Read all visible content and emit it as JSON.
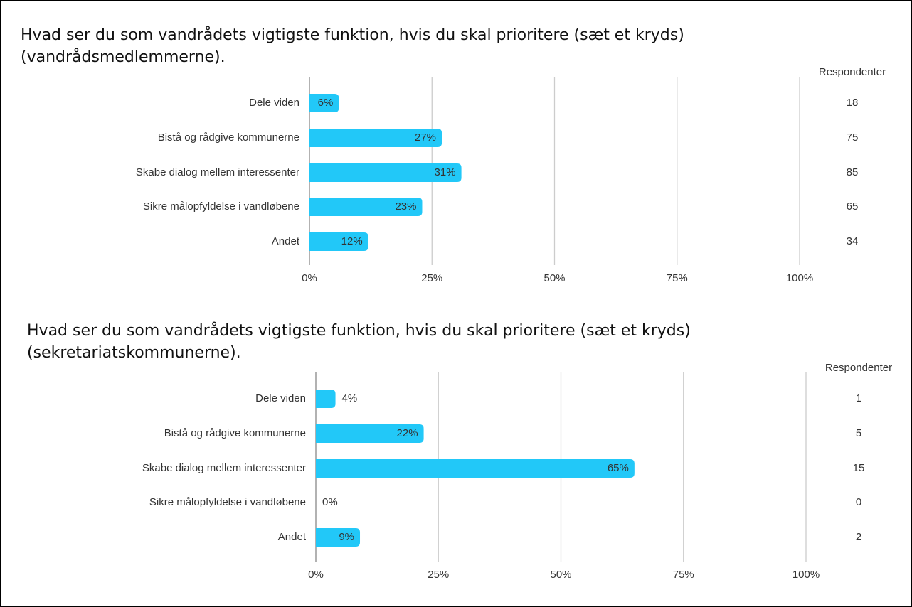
{
  "chart_data": [
    {
      "type": "bar",
      "orientation": "horizontal",
      "title": "Hvad ser du som vandrådets vigtigste funktion, hvis du skal prioritere (sæt et kryds) (vandrådsmedlemmerne).",
      "categories": [
        "Dele viden",
        "Bistå og rådgive kommunerne",
        "Skabe dialog mellem interessenter",
        "Sikre målopfyldelse i vandløbene",
        "Andet"
      ],
      "values": [
        6,
        27,
        31,
        23,
        12
      ],
      "value_labels": [
        "6%",
        "27%",
        "31%",
        "23%",
        "12%"
      ],
      "color": "#22c8f8",
      "xlim": [
        0,
        100
      ],
      "xticks": [
        {
          "value": 0,
          "label": "0%"
        },
        {
          "value": 25,
          "label": "25%"
        },
        {
          "value": 50,
          "label": "50%"
        },
        {
          "value": 75,
          "label": "75%"
        },
        {
          "value": 100,
          "label": "100%"
        }
      ],
      "grid": true,
      "respondents": {
        "label": "Respondenter",
        "values": [
          18,
          75,
          85,
          65,
          34
        ]
      }
    },
    {
      "type": "bar",
      "orientation": "horizontal",
      "title": "Hvad ser du som vandrådets vigtigste funktion, hvis du skal prioritere (sæt et kryds) (sekretariatskommunerne).",
      "categories": [
        "Dele viden",
        "Bistå og rådgive kommunerne",
        "Skabe dialog mellem interessenter",
        "Sikre målopfyldelse i vandløbene",
        "Andet"
      ],
      "values": [
        4,
        22,
        65,
        0,
        9
      ],
      "value_labels": [
        "4%",
        "22%",
        "65%",
        "0%",
        "9%"
      ],
      "color": "#22c8f8",
      "xlim": [
        0,
        100
      ],
      "xticks": [
        {
          "value": 0,
          "label": "0%"
        },
        {
          "value": 25,
          "label": "25%"
        },
        {
          "value": 50,
          "label": "50%"
        },
        {
          "value": 75,
          "label": "75%"
        },
        {
          "value": 100,
          "label": "100%"
        }
      ],
      "grid": true,
      "respondents": {
        "label": "Respondenter",
        "values": [
          1,
          5,
          15,
          0,
          2
        ]
      }
    }
  ]
}
